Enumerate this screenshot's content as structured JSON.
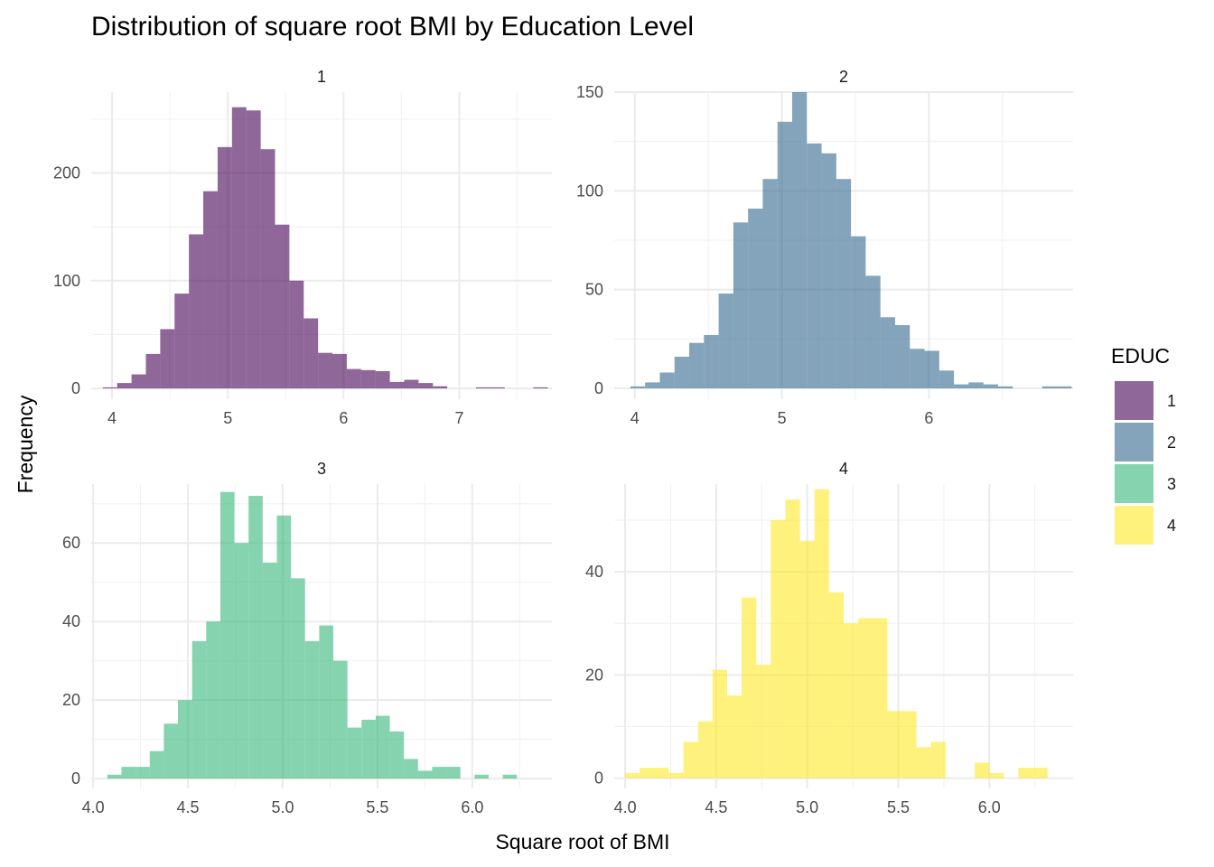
{
  "chart_data": {
    "type": "bar",
    "subtype": "faceted histogram",
    "title": "Distribution of square root BMI by Education Level",
    "xlabel": "Square root of BMI",
    "ylabel": "Frequency",
    "legend": {
      "title": "EDUC",
      "position": "right",
      "items": [
        {
          "label": "1",
          "color": "#440154"
        },
        {
          "label": "2",
          "color": "#31688E"
        },
        {
          "label": "3",
          "color": "#35B779"
        },
        {
          "label": "4",
          "color": "#FDE725"
        }
      ]
    },
    "alpha": 0.6,
    "grid": true,
    "facets": [
      {
        "label": "1",
        "color": "#440154",
        "xlim": [
          3.82,
          7.8
        ],
        "ylim": [
          -10,
          275
        ],
        "xticks": [
          4,
          5,
          6,
          7
        ],
        "xtick_labels": [
          "4",
          "5",
          "6",
          "7"
        ],
        "yticks": [
          0,
          100,
          200
        ],
        "ytick_labels": [
          "0",
          "100",
          "200"
        ],
        "bins": {
          "start": 3.92,
          "width": 0.124,
          "values": [
            1,
            5,
            13,
            32,
            55,
            88,
            143,
            183,
            224,
            261,
            258,
            222,
            152,
            100,
            65,
            33,
            32,
            18,
            17,
            16,
            6,
            8,
            5,
            2,
            0,
            0,
            1,
            1,
            0,
            0,
            1
          ]
        }
      },
      {
        "label": "2",
        "color": "#31688E",
        "xlim": [
          3.86,
          6.98
        ],
        "ylim": [
          -5.5,
          150
        ],
        "xticks": [
          4,
          5,
          6
        ],
        "xtick_labels": [
          "4",
          "5",
          "6"
        ],
        "yticks": [
          0,
          50,
          100,
          150
        ],
        "ytick_labels": [
          "0",
          "50",
          "100",
          "150"
        ],
        "bins": {
          "start": 3.97,
          "width": 0.1,
          "values": [
            1,
            3,
            8,
            16,
            23,
            27,
            48,
            84,
            91,
            106,
            135,
            150,
            124,
            119,
            106,
            77,
            57,
            36,
            32,
            20,
            19,
            9,
            2,
            3,
            2,
            1,
            0,
            0,
            1,
            1
          ]
        }
      },
      {
        "label": "3",
        "color": "#35B779",
        "xlim": [
          3.99,
          6.42
        ],
        "ylim": [
          -2.5,
          75
        ],
        "xticks": [
          4.0,
          4.5,
          5.0,
          5.5,
          6.0
        ],
        "xtick_labels": [
          "4.0",
          "4.5",
          "5.0",
          "5.5",
          "6.0"
        ],
        "yticks": [
          0,
          20,
          40,
          60
        ],
        "ytick_labels": [
          "0",
          "20",
          "40",
          "60"
        ],
        "bins": {
          "start": 4.075,
          "width": 0.0745,
          "values": [
            1,
            3,
            3,
            7,
            14,
            20,
            35,
            40,
            73,
            60,
            72,
            55,
            67,
            51,
            35,
            39,
            30,
            13,
            15,
            16,
            12,
            5,
            2,
            3,
            3,
            0,
            1,
            0,
            1
          ]
        }
      },
      {
        "label": "4",
        "color": "#FDE725",
        "xlim": [
          3.94,
          6.46
        ],
        "ylim": [
          -2,
          57
        ],
        "xticks": [
          4.0,
          4.5,
          5.0,
          5.5,
          6.0
        ],
        "xtick_labels": [
          "4.0",
          "4.5",
          "5.0",
          "5.5",
          "6.0"
        ],
        "yticks": [
          0,
          20,
          40
        ],
        "ytick_labels": [
          "0",
          "20",
          "40"
        ],
        "bins": {
          "start": 4.0,
          "width": 0.08,
          "values": [
            1,
            2,
            2,
            1,
            7,
            11,
            21,
            16,
            35,
            22,
            50,
            54,
            46,
            56,
            36,
            30,
            31,
            31,
            13,
            13,
            6,
            7,
            0,
            0,
            3,
            1,
            0,
            2,
            2
          ]
        }
      }
    ]
  }
}
